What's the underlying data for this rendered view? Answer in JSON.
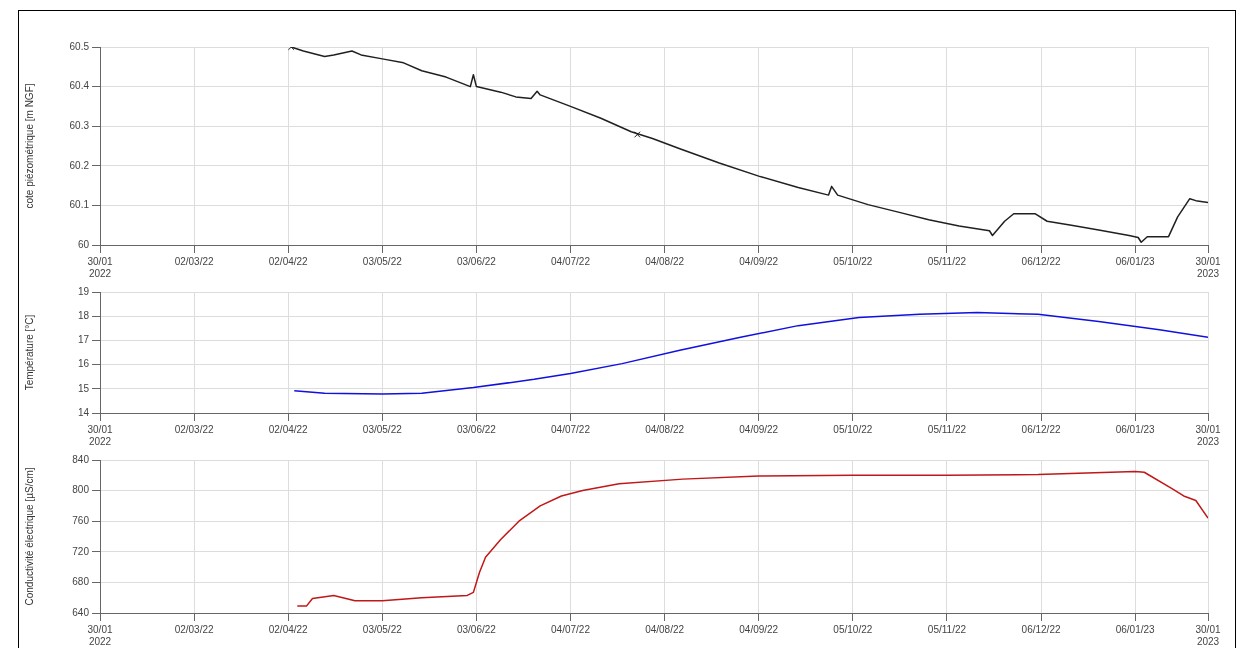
{
  "chart_data": [
    {
      "type": "line",
      "ylabel": "cote piézométrique [m NGF]",
      "xlim": [
        "2022-01-30",
        "2023-01-30"
      ],
      "xticks": [
        {
          "value": "2022-01-30",
          "label": "30/01\n2022"
        },
        {
          "value": "2022-03-02",
          "label": "02/03/22"
        },
        {
          "value": "2022-04-02",
          "label": "02/04/22"
        },
        {
          "value": "2022-05-03",
          "label": "03/05/22"
        },
        {
          "value": "2022-06-03",
          "label": "03/06/22"
        },
        {
          "value": "2022-07-04",
          "label": "04/07/22"
        },
        {
          "value": "2022-08-04",
          "label": "04/08/22"
        },
        {
          "value": "2022-09-04",
          "label": "04/09/22"
        },
        {
          "value": "2022-10-05",
          "label": "05/10/22"
        },
        {
          "value": "2022-11-05",
          "label": "05/11/22"
        },
        {
          "value": "2022-12-06",
          "label": "06/12/22"
        },
        {
          "value": "2023-01-06",
          "label": "06/01/23"
        },
        {
          "value": "2023-01-30",
          "label": "30/01\n2023"
        }
      ],
      "ylim": [
        60,
        60.5
      ],
      "yticks": [
        60,
        60.1,
        60.2,
        60.3,
        60.4,
        60.5
      ],
      "grid": true,
      "legend": false,
      "series": [
        {
          "color": "#202020",
          "x": [
            "2022-04-03",
            "2022-04-07",
            "2022-04-14",
            "2022-04-17",
            "2022-04-23",
            "2022-04-26",
            "2022-05-03",
            "2022-05-10",
            "2022-05-16",
            "2022-05-24",
            "2022-06-01",
            "2022-06-02",
            "2022-06-03",
            "2022-06-11",
            "2022-06-16",
            "2022-06-21",
            "2022-06-23",
            "2022-06-24",
            "2022-07-04",
            "2022-07-14",
            "2022-07-24",
            "2022-07-31",
            "2022-08-09",
            "2022-08-22",
            "2022-09-04",
            "2022-09-17",
            "2022-09-27",
            "2022-09-28",
            "2022-09-30",
            "2022-10-10",
            "2022-10-20",
            "2022-10-30",
            "2022-11-09",
            "2022-11-19",
            "2022-11-20",
            "2022-11-24",
            "2022-11-27",
            "2022-12-04",
            "2022-12-08",
            "2022-12-16",
            "2022-12-25",
            "2023-01-04",
            "2023-01-07",
            "2023-01-08",
            "2023-01-10",
            "2023-01-17",
            "2023-01-20",
            "2023-01-24",
            "2023-01-26",
            "2023-01-30"
          ],
          "values": [
            60.5,
            60.49,
            60.476,
            60.48,
            60.49,
            60.48,
            60.47,
            60.46,
            60.44,
            60.424,
            60.4,
            60.43,
            60.4,
            60.386,
            60.374,
            60.37,
            60.388,
            60.379,
            60.35,
            60.32,
            60.286,
            60.269,
            60.243,
            60.207,
            60.174,
            60.145,
            60.126,
            60.148,
            60.126,
            60.102,
            60.083,
            60.064,
            60.048,
            60.036,
            60.024,
            60.06,
            60.079,
            60.079,
            60.06,
            60.05,
            60.038,
            60.024,
            60.019,
            60.007,
            60.021,
            60.021,
            60.071,
            60.117,
            60.112,
            60.107
          ]
        },
        {
          "type": "scatter",
          "color": "#202020",
          "marker": "cross",
          "x": [
            "2022-04-03",
            "2022-07-26"
          ],
          "values": [
            60.5,
            60.279
          ]
        }
      ]
    },
    {
      "type": "line",
      "ylabel": "Température [°C]",
      "xlim": [
        "2022-01-30",
        "2023-01-30"
      ],
      "xticks": [
        {
          "value": "2022-01-30",
          "label": "30/01\n2022"
        },
        {
          "value": "2022-03-02",
          "label": "02/03/22"
        },
        {
          "value": "2022-04-02",
          "label": "02/04/22"
        },
        {
          "value": "2022-05-03",
          "label": "03/05/22"
        },
        {
          "value": "2022-06-03",
          "label": "03/06/22"
        },
        {
          "value": "2022-07-04",
          "label": "04/07/22"
        },
        {
          "value": "2022-08-04",
          "label": "04/08/22"
        },
        {
          "value": "2022-09-04",
          "label": "04/09/22"
        },
        {
          "value": "2022-10-05",
          "label": "05/10/22"
        },
        {
          "value": "2022-11-05",
          "label": "05/11/22"
        },
        {
          "value": "2022-12-06",
          "label": "06/12/22"
        },
        {
          "value": "2023-01-06",
          "label": "06/01/23"
        },
        {
          "value": "2023-01-30",
          "label": "30/01\n2023"
        }
      ],
      "ylim": [
        14,
        19
      ],
      "yticks": [
        14,
        15,
        16,
        17,
        18,
        19
      ],
      "grid": true,
      "legend": false,
      "series": [
        {
          "color": "#1010e0",
          "x": [
            "2022-04-04",
            "2022-04-14",
            "2022-05-03",
            "2022-05-16",
            "2022-06-02",
            "2022-06-22",
            "2022-07-04",
            "2022-07-21",
            "2022-08-09",
            "2022-08-29",
            "2022-09-17",
            "2022-10-07",
            "2022-10-27",
            "2022-11-15",
            "2022-12-05",
            "2022-12-25",
            "2023-01-14",
            "2023-01-30"
          ],
          "values": [
            14.92,
            14.82,
            14.78,
            14.82,
            15.05,
            15.39,
            15.63,
            16.04,
            16.59,
            17.13,
            17.61,
            17.95,
            18.08,
            18.15,
            18.08,
            17.78,
            17.44,
            17.13
          ]
        }
      ]
    },
    {
      "type": "line",
      "ylabel": "Conductivité électrique [µS/cm]",
      "xlim": [
        "2022-01-30",
        "2023-01-30"
      ],
      "xticks": [
        {
          "value": "2022-01-30",
          "label": "30/01\n2022"
        },
        {
          "value": "2022-03-02",
          "label": "02/03/22"
        },
        {
          "value": "2022-04-02",
          "label": "02/04/22"
        },
        {
          "value": "2022-05-03",
          "label": "03/05/22"
        },
        {
          "value": "2022-06-03",
          "label": "03/06/22"
        },
        {
          "value": "2022-07-04",
          "label": "04/07/22"
        },
        {
          "value": "2022-08-04",
          "label": "04/08/22"
        },
        {
          "value": "2022-09-04",
          "label": "04/09/22"
        },
        {
          "value": "2022-10-05",
          "label": "05/10/22"
        },
        {
          "value": "2022-11-05",
          "label": "05/11/22"
        },
        {
          "value": "2022-12-06",
          "label": "06/12/22"
        },
        {
          "value": "2023-01-06",
          "label": "06/01/23"
        },
        {
          "value": "2023-01-30",
          "label": "30/01\n2023"
        }
      ],
      "ylim": [
        640,
        840
      ],
      "yticks": [
        640,
        680,
        720,
        760,
        800,
        840
      ],
      "grid": true,
      "legend": false,
      "series": [
        {
          "color": "#c01818",
          "x": [
            "2022-04-05",
            "2022-04-08",
            "2022-04-10",
            "2022-04-17",
            "2022-04-24",
            "2022-05-03",
            "2022-05-16",
            "2022-05-31",
            "2022-06-02",
            "2022-06-04",
            "2022-06-06",
            "2022-06-11",
            "2022-06-17",
            "2022-06-24",
            "2022-07-01",
            "2022-07-08",
            "2022-07-20",
            "2022-08-10",
            "2022-09-04",
            "2022-10-05",
            "2022-11-05",
            "2022-12-05",
            "2023-01-06",
            "2023-01-09",
            "2023-01-18",
            "2023-01-22",
            "2023-01-26",
            "2023-01-30"
          ],
          "values": [
            649,
            649,
            659,
            663,
            656,
            656,
            660,
            663,
            667,
            693,
            713,
            736,
            760,
            780,
            793,
            800,
            809,
            815,
            819,
            820,
            820,
            821,
            825,
            824,
            803,
            793,
            787,
            764
          ]
        }
      ]
    }
  ]
}
